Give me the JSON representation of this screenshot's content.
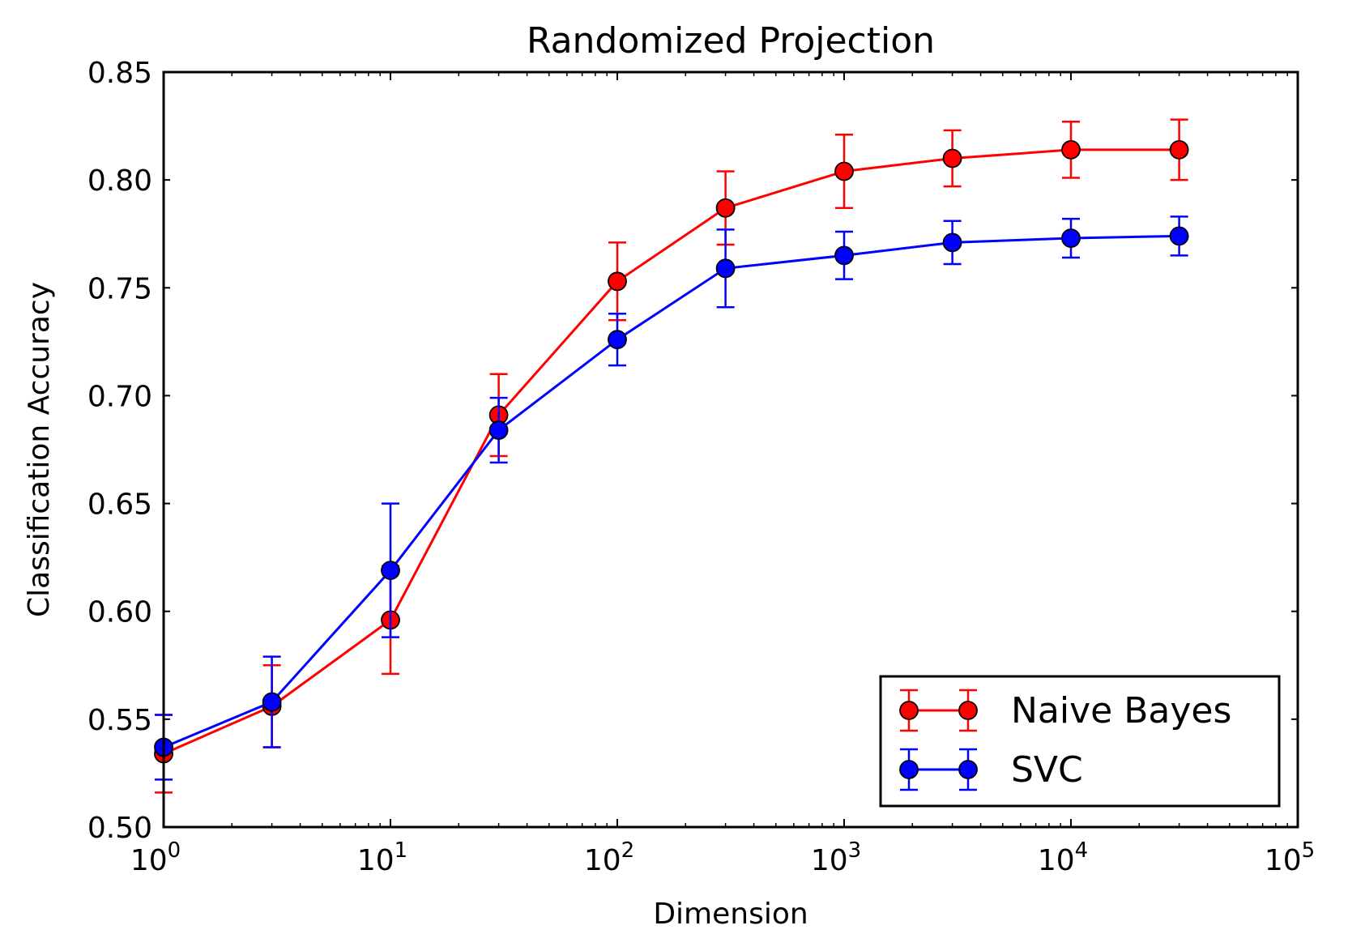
{
  "chart_data": {
    "type": "line",
    "title": "Randomized Projection",
    "xlabel": "Dimension",
    "ylabel": "Classification Accuracy",
    "xscale": "log",
    "xlim": [
      1,
      100000
    ],
    "ylim": [
      0.5,
      0.85
    ],
    "x_ticks": [
      {
        "base": "10",
        "exp": "0"
      },
      {
        "base": "10",
        "exp": "1"
      },
      {
        "base": "10",
        "exp": "2"
      },
      {
        "base": "10",
        "exp": "3"
      },
      {
        "base": "10",
        "exp": "4"
      },
      {
        "base": "10",
        "exp": "5"
      }
    ],
    "y_ticks": [
      "0.50",
      "0.55",
      "0.60",
      "0.65",
      "0.70",
      "0.75",
      "0.80",
      "0.85"
    ],
    "x": [
      1,
      3,
      10,
      30,
      100,
      300,
      1000,
      3000,
      10000,
      30000
    ],
    "series": [
      {
        "name": "Naive Bayes",
        "color": "#ff0000",
        "values": [
          0.534,
          0.556,
          0.596,
          0.691,
          0.753,
          0.787,
          0.804,
          0.81,
          0.814,
          0.814
        ],
        "errors": [
          0.018,
          0.019,
          0.025,
          0.019,
          0.018,
          0.017,
          0.017,
          0.013,
          0.013,
          0.014
        ]
      },
      {
        "name": "SVC",
        "color": "#0000ff",
        "values": [
          0.537,
          0.558,
          0.619,
          0.684,
          0.726,
          0.759,
          0.765,
          0.771,
          0.773,
          0.774
        ],
        "errors": [
          0.015,
          0.021,
          0.031,
          0.015,
          0.012,
          0.018,
          0.011,
          0.01,
          0.009,
          0.009
        ]
      }
    ],
    "legend": "lower-right",
    "grid": false
  }
}
